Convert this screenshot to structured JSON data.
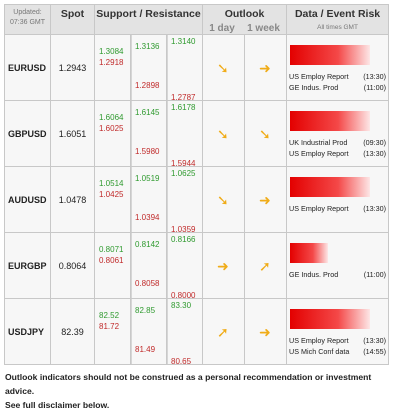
{
  "header": {
    "updated_label": "Updated:",
    "updated_time": "07:36 GMT",
    "spot": "Spot",
    "support_resistance": "Support / Resistance",
    "outlook": "Outlook",
    "outlook_1day": "1 day",
    "outlook_1week": "1 week",
    "data_event_risk": "Data / Event Risk",
    "times_note": "All times GMT"
  },
  "rows": [
    {
      "pair": "EURUSD",
      "spot": "1.2943",
      "levels": {
        "r1": "1.3084",
        "s1": "1.2918",
        "r2": "1.3136",
        "s2": "1.2898",
        "r3": "1.3140",
        "s3": "1.2787"
      },
      "outlook_1day": "down-right",
      "outlook_1week": "right",
      "risk_level": 0.95,
      "events": [
        {
          "name": "US Employ Report",
          "time": "(13:30)"
        },
        {
          "name": "GE Indus. Prod",
          "time": "(11:00)"
        }
      ]
    },
    {
      "pair": "GBPUSD",
      "spot": "1.6051",
      "levels": {
        "r1": "1.6064",
        "s1": "1.6025",
        "r2": "1.6145",
        "s2": "1.5980",
        "r3": "1.6178",
        "s3": "1.5944"
      },
      "outlook_1day": "down-right",
      "outlook_1week": "down-right",
      "risk_level": 0.95,
      "events": [
        {
          "name": "UK Industrial Prod",
          "time": "(09:30)"
        },
        {
          "name": "US Employ Report",
          "time": "(13:30)"
        }
      ]
    },
    {
      "pair": "AUDUSD",
      "spot": "1.0478",
      "levels": {
        "r1": "1.0514",
        "s1": "1.0425",
        "r2": "1.0519",
        "s2": "1.0394",
        "r3": "1.0625",
        "s3": "1.0359"
      },
      "outlook_1day": "down-right",
      "outlook_1week": "right",
      "risk_level": 0.95,
      "events": [
        {
          "name": "US Employ Report",
          "time": "(13:30)"
        }
      ]
    },
    {
      "pair": "EURGBP",
      "spot": "0.8064",
      "levels": {
        "r1": "0.8071",
        "s1": "0.8061",
        "r2": "0.8142",
        "s2": "0.8058",
        "r3": "0.8166",
        "s3": "0.8000"
      },
      "outlook_1day": "right",
      "outlook_1week": "up-right",
      "risk_level": 0.45,
      "events": [
        {
          "name": "GE Indus. Prod",
          "time": "(11:00)"
        }
      ]
    },
    {
      "pair": "USDJPY",
      "spot": "82.39",
      "levels": {
        "r1": "82.52",
        "s1": "81.72",
        "r2": "82.85",
        "s2": "81.49",
        "r3": "83.30",
        "s3": "80.65"
      },
      "outlook_1day": "up-right",
      "outlook_1week": "right",
      "risk_level": 0.95,
      "events": [
        {
          "name": "US Employ Report",
          "time": "(13:30)"
        },
        {
          "name": "US Mich Conf data",
          "time": "(14:55)"
        }
      ]
    }
  ],
  "footer": {
    "line1": "Outlook indicators should not be construed as a personal recommendation or investment advice.",
    "line2": "See full disclaimer below."
  },
  "colors": {
    "support": "#c02a2a",
    "resistance": "#2f9a2f",
    "arrow": "#f0ac18",
    "risk_bar": "#e30000"
  },
  "icon_names": {
    "right": "arrow-right-icon",
    "down-right": "arrow-down-right-icon",
    "up-right": "arrow-up-right-icon"
  }
}
